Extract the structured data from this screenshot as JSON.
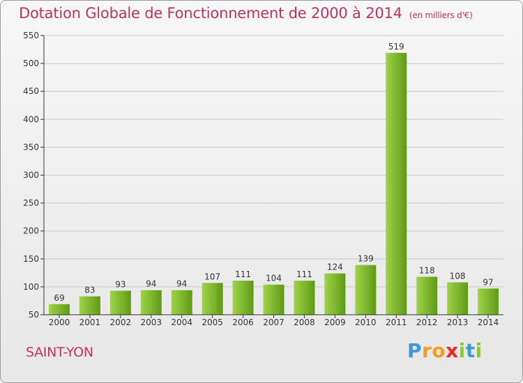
{
  "header": {
    "title": "Dotation Globale de Fonctionnement de 2000 à 2014",
    "subtitle": "(en milliers d'€)"
  },
  "footer": {
    "city": "SAINT-YON",
    "logo": {
      "letters": [
        "P",
        "r",
        "o",
        "x",
        "i",
        "t",
        "i"
      ],
      "colors": [
        "#3a9ad9",
        "#f39c1e",
        "#f39c1e",
        "#e8262d",
        "#8cc63e",
        "#3a9ad9",
        "#8cc63e"
      ]
    }
  },
  "colors": {
    "bar_light": "#9fd44a",
    "bar_dark": "#5f9a16",
    "axis": "#333333",
    "grid": "#c8c8c8"
  },
  "chart_data": {
    "type": "bar",
    "title": "Dotation Globale de Fonctionnement de 2000 à 2014",
    "subtitle": "(en milliers d'€)",
    "categories": [
      "2000",
      "2001",
      "2002",
      "2003",
      "2004",
      "2005",
      "2006",
      "2007",
      "2008",
      "2009",
      "2010",
      "2011",
      "2012",
      "2013",
      "2014"
    ],
    "values": [
      69,
      83,
      93,
      94,
      94,
      107,
      111,
      104,
      111,
      124,
      139,
      519,
      118,
      108,
      97
    ],
    "ylim": [
      50,
      550
    ],
    "yticks": [
      50,
      100,
      150,
      200,
      250,
      300,
      350,
      400,
      450,
      500,
      550
    ],
    "grid": true
  }
}
